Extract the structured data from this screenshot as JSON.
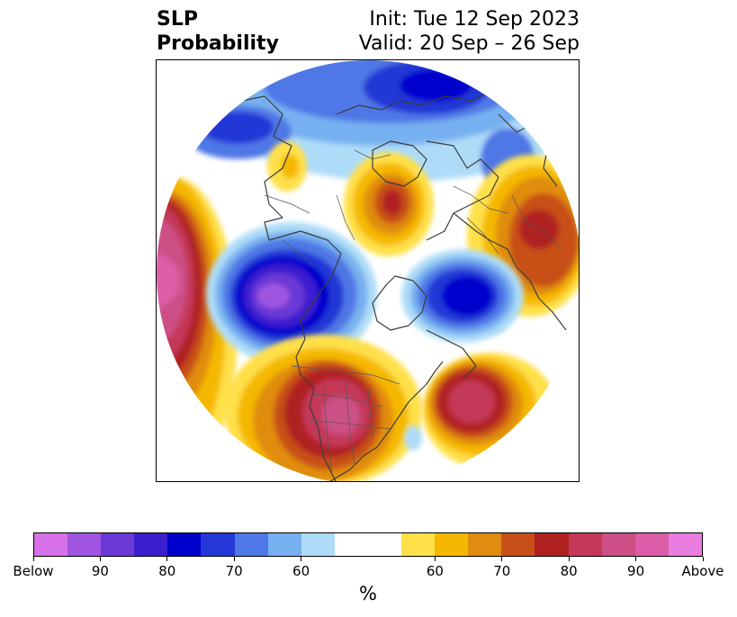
{
  "title": {
    "line1": "SLP",
    "line2": "Probability",
    "init": "Init: Tue 12 Sep 2023",
    "valid": "Valid: 20 Sep – 26 Sep"
  },
  "colorbar": {
    "colors": [
      "#d671e8",
      "#9f55e0",
      "#6b39d6",
      "#3a1fcf",
      "#0000cc",
      "#2338d6",
      "#4f78e6",
      "#77b0f0",
      "#aedcf8",
      "#ffffff",
      "#ffe04a",
      "#f5b800",
      "#e08c10",
      "#c85018",
      "#b02222",
      "#c43858",
      "#cc4f86",
      "#dc5ea8",
      "#e97de0"
    ],
    "tick_labels": [
      "Below",
      "90",
      "80",
      "70",
      "60",
      "60",
      "70",
      "80",
      "90",
      "Above"
    ],
    "units": "%"
  },
  "map": {
    "projection": "north-polar-stereographic",
    "features": [
      "coastlines",
      "country-borders",
      "us-state-borders"
    ]
  }
}
